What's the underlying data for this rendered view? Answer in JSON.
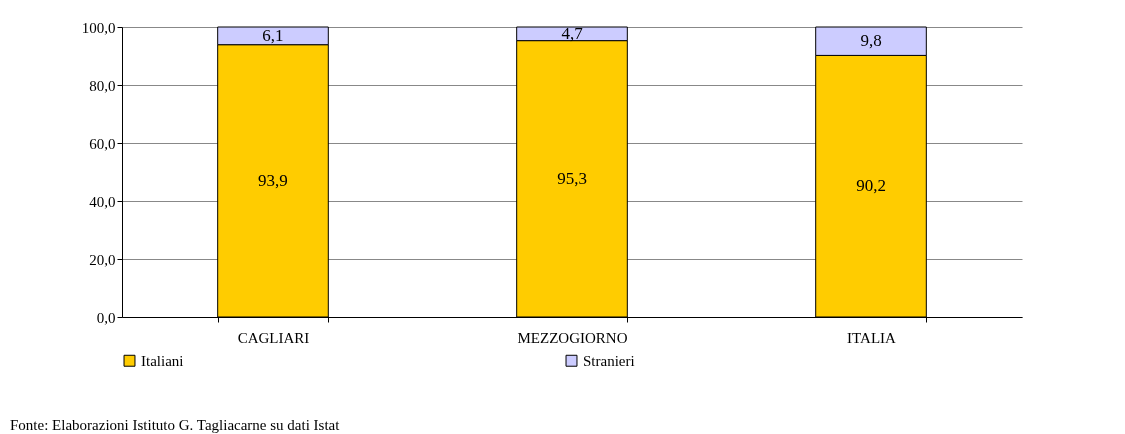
{
  "chart_data": {
    "type": "bar",
    "stacked": true,
    "categories": [
      "CAGLIARI",
      "MEZZOGIORNO",
      "ITALIA"
    ],
    "series": [
      {
        "name": "Italiani",
        "color": "#ffcc00",
        "values": [
          93.9,
          95.3,
          90.2
        ],
        "value_labels": [
          "93,9",
          "95,3",
          "90,2"
        ]
      },
      {
        "name": "Stranieri",
        "color": "#ccccff",
        "values": [
          6.1,
          4.7,
          9.8
        ],
        "value_labels": [
          "6,1",
          "4,7",
          "9,8"
        ]
      }
    ],
    "ylim": [
      0,
      100
    ],
    "yticks": [
      {
        "value": 0,
        "label": "0,0"
      },
      {
        "value": 20,
        "label": "20,0"
      },
      {
        "value": 40,
        "label": "40,0"
      },
      {
        "value": 60,
        "label": "60,0"
      },
      {
        "value": 80,
        "label": "80,0"
      },
      {
        "value": 100,
        "label": "100,0"
      }
    ],
    "grid": "y",
    "legend": "bottom",
    "annotations": [
      "Fonte: Elaborazioni Istituto G. Tagliacarne su dati Istat"
    ]
  }
}
